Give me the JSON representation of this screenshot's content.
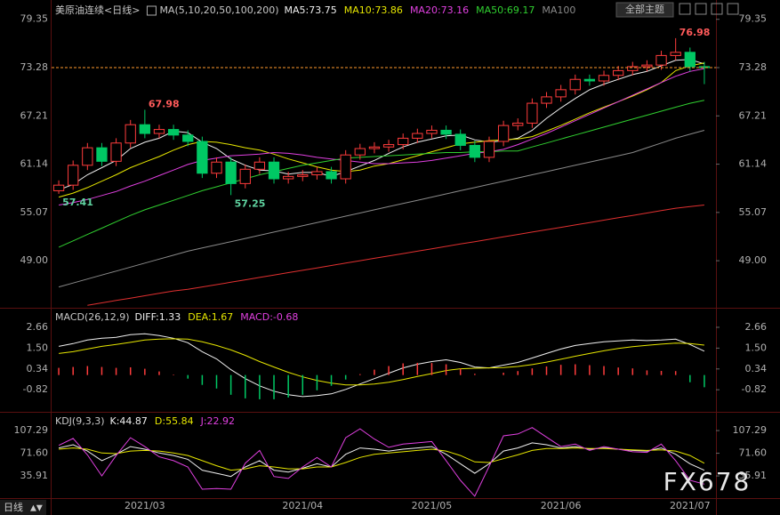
{
  "header": {
    "symbol": "美原油连续<日线>",
    "ma_label": "MA(5,10,20,50,100,200)",
    "theme_button": "全部主题"
  },
  "footer": {
    "period": "日线",
    "watermark": "FX678"
  },
  "chart_data": [
    {
      "type": "candlestick",
      "x": [
        null,
        null,
        null,
        null,
        null,
        null,
        "2021/03",
        null,
        null,
        null,
        null,
        null,
        null,
        null,
        null,
        null,
        null,
        "2021/04",
        null,
        null,
        null,
        null,
        null,
        null,
        null,
        null,
        "2021/05",
        null,
        null,
        null,
        null,
        null,
        null,
        null,
        null,
        "2021/06",
        null,
        null,
        null,
        null,
        null,
        null,
        null,
        null,
        "2021/07",
        null
      ],
      "open": [
        57.8,
        58.5,
        61.0,
        63.2,
        61.5,
        63.8,
        66.1,
        65.0,
        65.5,
        64.8,
        64.0,
        60.0,
        61.4,
        58.7,
        60.5,
        61.4,
        59.3,
        59.6,
        59.8,
        60.2,
        59.3,
        62.3,
        63.1,
        63.3,
        63.6,
        64.4,
        65.0,
        65.4,
        64.9,
        63.5,
        62.0,
        64.0,
        66.0,
        66.3,
        68.8,
        69.6,
        70.5,
        71.8,
        71.6,
        72.3,
        72.9,
        73.4,
        73.6,
        74.8,
        75.2,
        73.4
      ],
      "high": [
        59.1,
        61.6,
        63.8,
        63.8,
        64.4,
        66.7,
        67.98,
        66.1,
        66.1,
        65.4,
        64.6,
        62.0,
        62.0,
        61.1,
        62.0,
        62.0,
        60.2,
        60.4,
        60.8,
        60.8,
        62.9,
        63.7,
        63.9,
        64.2,
        65.0,
        65.6,
        66.0,
        66.0,
        65.5,
        64.1,
        64.6,
        66.6,
        66.9,
        69.4,
        70.2,
        71.1,
        72.4,
        72.4,
        72.9,
        73.5,
        74.0,
        74.2,
        75.4,
        76.98,
        75.8,
        74.0
      ],
      "low": [
        57.41,
        57.9,
        60.4,
        60.9,
        60.9,
        63.2,
        64.4,
        64.4,
        64.2,
        63.4,
        59.4,
        59.4,
        57.25,
        58.1,
        59.9,
        58.7,
        58.7,
        59.0,
        59.2,
        58.7,
        58.7,
        61.7,
        62.5,
        62.7,
        63.0,
        63.8,
        64.4,
        64.3,
        62.9,
        61.4,
        61.4,
        63.4,
        65.4,
        65.7,
        68.2,
        69.0,
        69.9,
        71.0,
        71.0,
        71.7,
        72.3,
        72.8,
        73.0,
        74.2,
        72.8,
        71.2
      ],
      "close": [
        58.5,
        61.0,
        63.2,
        61.5,
        63.8,
        66.1,
        65.0,
        65.5,
        64.8,
        64.0,
        60.0,
        61.4,
        58.7,
        60.5,
        61.4,
        59.3,
        59.6,
        59.8,
        60.2,
        59.3,
        62.3,
        63.1,
        63.3,
        63.6,
        64.4,
        65.0,
        65.4,
        64.9,
        63.5,
        62.0,
        64.0,
        66.0,
        66.3,
        68.8,
        69.6,
        70.5,
        71.8,
        71.6,
        72.3,
        72.9,
        73.4,
        73.6,
        74.8,
        75.2,
        73.4,
        73.28
      ],
      "up_color": "#ff3c3c",
      "down_color": "#00c864",
      "high_label_color": "#ff5a5a",
      "low_label_color": "#5fd3a0",
      "last_price_color": "#ff9a2e",
      "ylim": [
        43.2,
        80.1
      ],
      "yticks": [
        79.35,
        73.28,
        67.21,
        61.14,
        55.07,
        {
          "value": 49,
          "label": "49.00"
        }
      ],
      "series": [
        {
          "name": "MA5:73.75",
          "color": "#f0f0f0",
          "values": [
            57.9,
            58.6,
            59.8,
            60.7,
            61.6,
            63.1,
            63.9,
            64.4,
            65.3,
            65.1,
            63.9,
            63.1,
            61.8,
            61.0,
            60.4,
            60.3,
            59.9,
            60.1,
            60.1,
            59.6,
            60.2,
            60.9,
            61.6,
            62.5,
            63.3,
            63.9,
            64.3,
            64.7,
            64.8,
            64.2,
            63.9,
            64.1,
            64.4,
            65.4,
            66.9,
            68.2,
            69.4,
            70.5,
            71.2,
            71.8,
            72.4,
            72.8,
            73.5,
            74.2,
            74.3,
            73.75
          ]
        },
        {
          "name": "MA10:73.86",
          "color": "#e6e600",
          "values": [
            57.0,
            57.5,
            58.2,
            59.0,
            59.8,
            60.7,
            61.4,
            62.1,
            62.9,
            63.6,
            64.0,
            63.9,
            63.6,
            63.2,
            62.9,
            62.4,
            61.8,
            61.3,
            60.8,
            60.4,
            60.2,
            60.4,
            60.9,
            61.2,
            61.7,
            62.2,
            62.7,
            63.2,
            63.7,
            63.9,
            64.1,
            64.2,
            64.3,
            64.6,
            65.3,
            66.0,
            66.8,
            67.6,
            68.3,
            69.0,
            69.7,
            70.5,
            71.4,
            72.9,
            73.5,
            73.86
          ]
        },
        {
          "name": "MA20:73.16",
          "color": "#e040e0",
          "values": [
            56.0,
            56.3,
            56.7,
            57.2,
            57.7,
            58.4,
            59.0,
            59.7,
            60.4,
            61.1,
            61.6,
            61.9,
            62.2,
            62.3,
            62.4,
            62.6,
            62.5,
            62.3,
            62.0,
            61.8,
            61.6,
            61.4,
            61.2,
            61.2,
            61.3,
            61.4,
            61.6,
            61.9,
            62.2,
            62.5,
            62.7,
            63.0,
            63.6,
            64.3,
            65.0,
            65.8,
            66.6,
            67.4,
            68.2,
            69.0,
            69.8,
            70.6,
            71.4,
            72.2,
            72.8,
            73.16
          ]
        },
        {
          "name": "MA50:69.17",
          "color": "#30d030",
          "values": [
            50.7,
            51.5,
            52.3,
            53.1,
            53.9,
            54.7,
            55.4,
            56.0,
            56.6,
            57.2,
            57.8,
            58.3,
            58.8,
            59.3,
            59.8,
            60.2,
            60.6,
            61.0,
            61.3,
            61.6,
            61.9,
            62.0,
            62.1,
            62.2,
            62.3,
            62.4,
            62.5,
            62.6,
            62.6,
            62.7,
            62.7,
            62.8,
            62.8,
            63.3,
            63.8,
            64.3,
            64.8,
            65.3,
            65.8,
            66.3,
            66.8,
            67.3,
            67.8,
            68.3,
            68.8,
            69.17
          ]
        },
        {
          "name": "MA100",
          "color": "#8a8a8a",
          "values": [
            45.7,
            46.2,
            46.7,
            47.2,
            47.7,
            48.2,
            48.7,
            49.2,
            49.7,
            50.2,
            50.6,
            51.0,
            51.4,
            51.8,
            52.2,
            52.6,
            53.0,
            53.4,
            53.8,
            54.2,
            54.6,
            55.0,
            55.4,
            55.8,
            56.2,
            56.6,
            57.0,
            57.4,
            57.8,
            58.2,
            58.6,
            59.0,
            59.4,
            59.8,
            60.2,
            60.6,
            61.0,
            61.4,
            61.8,
            62.2,
            62.6,
            63.2,
            63.8,
            64.4,
            64.9,
            65.4
          ]
        },
        {
          "color": "#e03030",
          "values": [
            null,
            null,
            43.4,
            43.7,
            44.0,
            44.3,
            44.6,
            44.9,
            45.2,
            45.4,
            45.7,
            46.0,
            46.3,
            46.6,
            46.9,
            47.2,
            47.5,
            47.8,
            48.1,
            48.4,
            48.7,
            49.0,
            49.3,
            49.6,
            49.9,
            50.2,
            50.5,
            50.8,
            51.1,
            51.4,
            51.7,
            52.0,
            52.3,
            52.6,
            52.9,
            53.2,
            53.5,
            53.8,
            54.1,
            54.4,
            54.7,
            55.0,
            55.3,
            55.6,
            55.8,
            56.0
          ]
        }
      ]
    },
    {
      "type": "macd",
      "title": "MACD(26,12,9)",
      "ylim": [
        -2.0,
        3.65
      ],
      "yticks": [
        2.66,
        {
          "value": 1.5,
          "label": "1.50"
        },
        0.34,
        -0.82
      ],
      "up_color": "#ff3c3c",
      "down_color": "#00c864",
      "series": [
        {
          "name": "DIFF:1.33",
          "color": "#f0f0f0",
          "values": [
            1.6,
            1.75,
            1.95,
            2.05,
            2.1,
            2.25,
            2.3,
            2.2,
            2.05,
            1.8,
            1.3,
            0.9,
            0.3,
            -0.2,
            -0.6,
            -0.9,
            -1.1,
            -1.2,
            -1.15,
            -1.05,
            -0.8,
            -0.5,
            -0.2,
            0.1,
            0.4,
            0.6,
            0.75,
            0.85,
            0.7,
            0.45,
            0.4,
            0.55,
            0.7,
            0.95,
            1.2,
            1.45,
            1.65,
            1.75,
            1.85,
            1.9,
            1.95,
            1.92,
            1.95,
            2.0,
            1.7,
            1.33
          ]
        },
        {
          "name": "DEA:1.67",
          "color": "#e6e600",
          "values": [
            1.2,
            1.3,
            1.45,
            1.6,
            1.7,
            1.82,
            1.95,
            2.0,
            2.02,
            2.0,
            1.85,
            1.65,
            1.4,
            1.1,
            0.75,
            0.45,
            0.15,
            -0.1,
            -0.3,
            -0.45,
            -0.55,
            -0.55,
            -0.5,
            -0.4,
            -0.25,
            -0.08,
            0.08,
            0.25,
            0.35,
            0.38,
            0.4,
            0.42,
            0.48,
            0.58,
            0.72,
            0.88,
            1.05,
            1.2,
            1.35,
            1.48,
            1.58,
            1.66,
            1.72,
            1.78,
            1.75,
            1.67
          ]
        },
        {
          "name": "MACD:-0.68",
          "color": "#e040e0",
          "bars": true,
          "values": [
            0.4,
            0.45,
            0.5,
            0.45,
            0.4,
            0.43,
            0.35,
            0.2,
            0.03,
            -0.2,
            -0.55,
            -0.75,
            -1.1,
            -1.3,
            -1.35,
            -1.35,
            -1.25,
            -1.1,
            -0.85,
            -0.6,
            -0.25,
            0.05,
            0.3,
            0.5,
            0.65,
            0.68,
            0.67,
            0.6,
            0.35,
            0.07,
            0.0,
            0.13,
            0.22,
            0.37,
            0.48,
            0.57,
            0.6,
            0.55,
            0.5,
            0.42,
            0.37,
            0.26,
            0.23,
            0.22,
            -0.4,
            -0.68
          ]
        }
      ]
    },
    {
      "type": "kdj",
      "title": "KDJ(9,3,3)",
      "ylim": [
        1,
        134
      ],
      "yticks": [
        107.29,
        {
          "value": 71.6,
          "label": "71.60"
        },
        35.91
      ],
      "series": [
        {
          "name": "K:44.87",
          "color": "#f0f0f0",
          "values": [
            80,
            85,
            75,
            60,
            70,
            82,
            78,
            72,
            68,
            62,
            45,
            40,
            35,
            50,
            60,
            45,
            42,
            48,
            55,
            50,
            70,
            80,
            78,
            75,
            78,
            80,
            82,
            70,
            55,
            40,
            55,
            75,
            80,
            88,
            85,
            80,
            82,
            78,
            80,
            78,
            76,
            75,
            80,
            70,
            55,
            44.87
          ]
        },
        {
          "name": "D:55.84",
          "color": "#e6e600",
          "values": [
            78,
            80,
            78,
            72,
            71,
            75,
            76,
            75,
            72,
            68,
            60,
            52,
            45,
            47,
            52,
            50,
            47,
            47,
            50,
            50,
            57,
            65,
            70,
            72,
            74,
            76,
            78,
            75,
            68,
            58,
            57,
            63,
            69,
            76,
            79,
            79,
            80,
            79,
            79,
            78,
            77,
            76,
            77,
            75,
            68,
            55.84
          ]
        },
        {
          "name": "J:22.92",
          "color": "#e040e0",
          "values": [
            84,
            95,
            69,
            36,
            68,
            96,
            82,
            66,
            60,
            50,
            15,
            16,
            15,
            56,
            76,
            35,
            32,
            50,
            65,
            50,
            96,
            110,
            94,
            81,
            86,
            88,
            90,
            60,
            29,
            4,
            51,
            99,
            102,
            112,
            97,
            82,
            86,
            76,
            82,
            78,
            74,
            73,
            86,
            60,
            29,
            22.92
          ]
        }
      ]
    }
  ]
}
